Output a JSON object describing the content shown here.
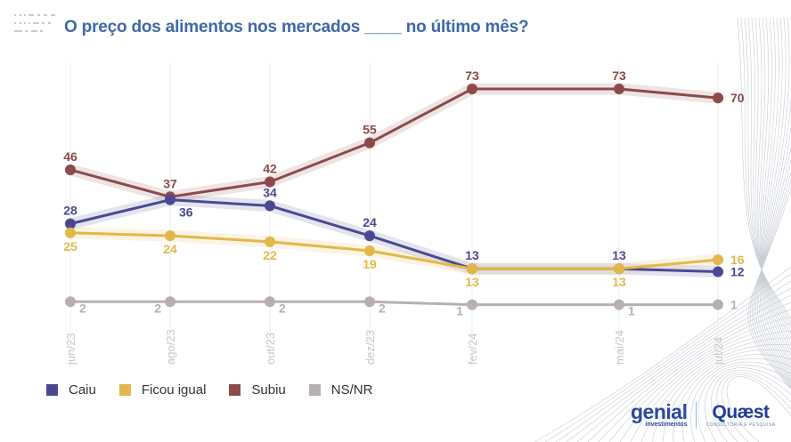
{
  "header": {
    "title": "O preço dos alimentos nos mercados ____ no último mês?"
  },
  "colors": {
    "caiu": "#4b4893",
    "ficou_igual": "#e3b84a",
    "subiu": "#8c4a4a",
    "nsnr": "#b8b0b0",
    "title": "#3f68a8",
    "tick": "#c8c8c8"
  },
  "legend": {
    "items": [
      {
        "label": "Caiu",
        "color": "#4b4893"
      },
      {
        "label": "Ficou igual",
        "color": "#e3b84a"
      },
      {
        "label": "Subiu",
        "color": "#8c4a4a"
      },
      {
        "label": "NS/NR",
        "color": "#b8b0b0"
      }
    ]
  },
  "logos": {
    "genial_name": "genial",
    "genial_sub": "investimentos",
    "quaest_name": "Quæst",
    "quaest_sub": "CONSULTORIA E PESQUISA"
  },
  "chart_data": {
    "type": "line",
    "title": "O preço dos alimentos nos mercados ____ no último mês?",
    "xlabel": "",
    "ylabel": "",
    "x": [
      "jun/23",
      "ago/23",
      "out/23",
      "dez/23",
      "fev/24",
      "mai/24",
      "jul/24"
    ],
    "ylim": [
      0,
      80
    ],
    "grid": "vertical",
    "legend_position": "bottom-left",
    "series": [
      {
        "name": "Subiu",
        "color": "#8c4a4a",
        "values": [
          46,
          37,
          42,
          55,
          73,
          73,
          70
        ],
        "label_pos": [
          "above",
          "above",
          "above",
          "above",
          "above",
          "above",
          "right"
        ]
      },
      {
        "name": "Caiu",
        "color": "#4b4893",
        "values": [
          28,
          36,
          34,
          24,
          13,
          13,
          12
        ],
        "label_pos": [
          "above",
          "below-right",
          "above",
          "above",
          "above",
          "above",
          "right"
        ]
      },
      {
        "name": "Ficou igual",
        "color": "#e3b84a",
        "values": [
          25,
          24,
          22,
          19,
          13,
          13,
          16
        ],
        "label_pos": [
          "below",
          "below",
          "below",
          "below",
          "below",
          "below",
          "right"
        ]
      },
      {
        "name": "NS/NR",
        "color": "#b8b0b0",
        "values": [
          2,
          2,
          2,
          2,
          1,
          1,
          1
        ],
        "label_pos": [
          "below-right",
          "below-left",
          "below-right",
          "below-right",
          "below-left",
          "below-right",
          "right"
        ]
      }
    ]
  }
}
